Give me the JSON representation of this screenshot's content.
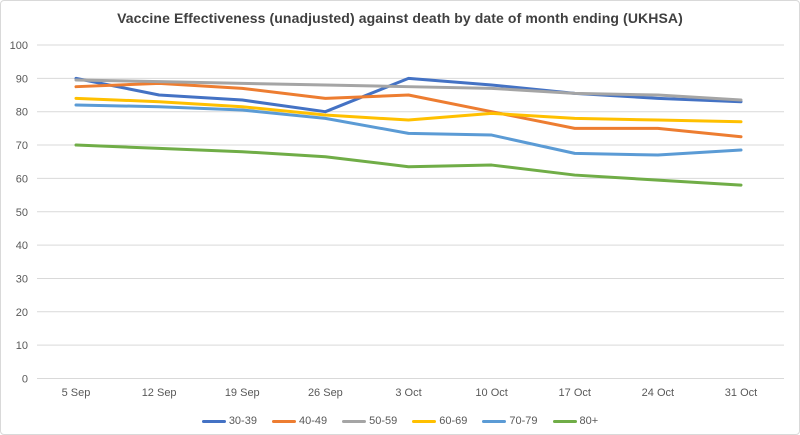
{
  "window": {
    "background": "#ffffff",
    "border_color": "#d9d9d9"
  },
  "chart_data": {
    "type": "line",
    "title": "Vaccine Effectiveness (unadjusted) against death by date of month ending (UKHSA)",
    "title_color": "#404040",
    "categories": [
      "5 Sep",
      "12 Sep",
      "19 Sep",
      "26 Sep",
      "3 Oct",
      "10 Oct",
      "17 Oct",
      "24 Oct",
      "31 Oct"
    ],
    "series": [
      {
        "name": "30-39",
        "color": "#4472C4",
        "values": [
          90,
          85,
          83.5,
          80,
          90,
          88,
          85.5,
          84,
          83
        ]
      },
      {
        "name": "40-49",
        "color": "#ED7D31",
        "values": [
          87.5,
          88.5,
          87,
          84,
          85,
          80,
          75,
          75,
          72.5
        ]
      },
      {
        "name": "50-59",
        "color": "#A5A5A5",
        "values": [
          89.5,
          89,
          88.5,
          88,
          87.5,
          87,
          85.5,
          85,
          83.5
        ]
      },
      {
        "name": "60-69",
        "color": "#FFC000",
        "values": [
          84,
          83,
          81.5,
          79,
          77.5,
          79.5,
          78,
          77.5,
          77
        ]
      },
      {
        "name": "70-79",
        "color": "#5B9BD5",
        "values": [
          82,
          81.5,
          80.5,
          78,
          73.5,
          73,
          67.5,
          67,
          68.5
        ]
      },
      {
        "name": "80+",
        "color": "#70AD47",
        "values": [
          70,
          69,
          68,
          66.5,
          63.5,
          64,
          61,
          59.5,
          58
        ]
      }
    ],
    "ylim": [
      0,
      100
    ],
    "yticks": [
      0,
      10,
      20,
      30,
      40,
      50,
      60,
      70,
      80,
      90,
      100
    ],
    "xlabel": "",
    "ylabel": "",
    "grid": true,
    "gridline_color": "#d9d9d9",
    "axis_label_color": "#595959",
    "legend_position": "bottom"
  }
}
